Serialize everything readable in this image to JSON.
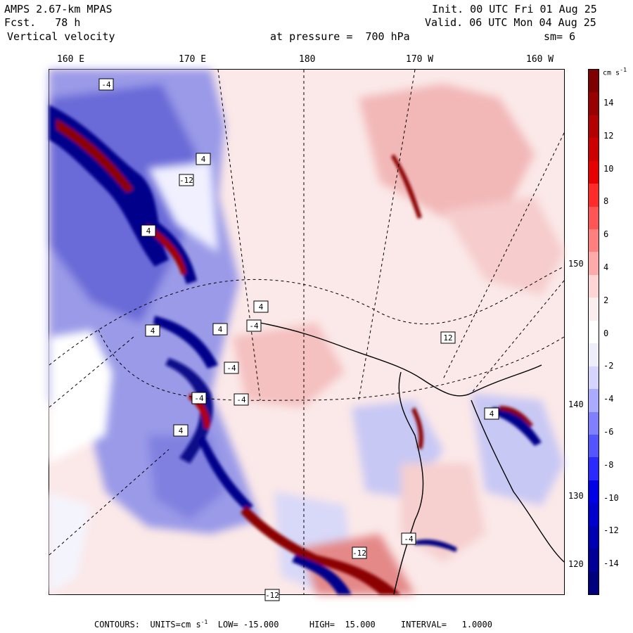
{
  "header": {
    "model": "AMPS 2.67-km MPAS",
    "forecast": "Fcst.   78 h",
    "field": "Vertical velocity",
    "init": "Init. 00 UTC Fri 01 Aug 25",
    "valid": "Valid. 06 UTC Mon 04 Aug 25",
    "level": "at pressure =  700 hPa",
    "smoothing": "sm= 6"
  },
  "longitude_labels": [
    "160 E",
    "170 E",
    "180",
    "170 W",
    "160 W"
  ],
  "latitude_labels": [
    "150 W",
    "140 W",
    "130 W",
    "120 W"
  ],
  "colorbar": {
    "unit": "cm s",
    "unit_exponent": "-1",
    "labels": [
      "14",
      "12",
      "10",
      "8",
      "6",
      "4",
      "2",
      "0",
      "-2",
      "-4",
      "-6",
      "-8",
      "-10",
      "-12",
      "-14"
    ],
    "colors": [
      "#7f0000",
      "#990000",
      "#b30000",
      "#cc0000",
      "#e60000",
      "#ff2a2a",
      "#ff5555",
      "#ff7f7f",
      "#ffaaaa",
      "#ffd4d4",
      "#fbeeee",
      "#ffffff",
      "#eeeefb",
      "#d4d4ff",
      "#aaaaff",
      "#7f7fff",
      "#5555ff",
      "#2a2aff",
      "#0000e6",
      "#0000cc",
      "#0000b3",
      "#000099",
      "#00007f"
    ]
  },
  "contour_labels": [
    "4",
    "-4",
    "4",
    "-12",
    "4",
    "-4",
    "4",
    "4",
    "-4",
    "-4",
    "-4",
    "4",
    "12",
    "4",
    "-4",
    "-12",
    "-12"
  ],
  "footer": {
    "contours": "CONTOURS:  UNITS=cm s",
    "exponent": "-1",
    "rest": "  LOW= -15.000      HIGH=  15.000     INTERVAL=   1.0000"
  },
  "colors": {
    "strong_up": "#8b0000",
    "strong_down": "#00008b",
    "weak_up": "#ffcccc",
    "weak_down": "#c8c8f5",
    "neutral": "#ffffff"
  }
}
